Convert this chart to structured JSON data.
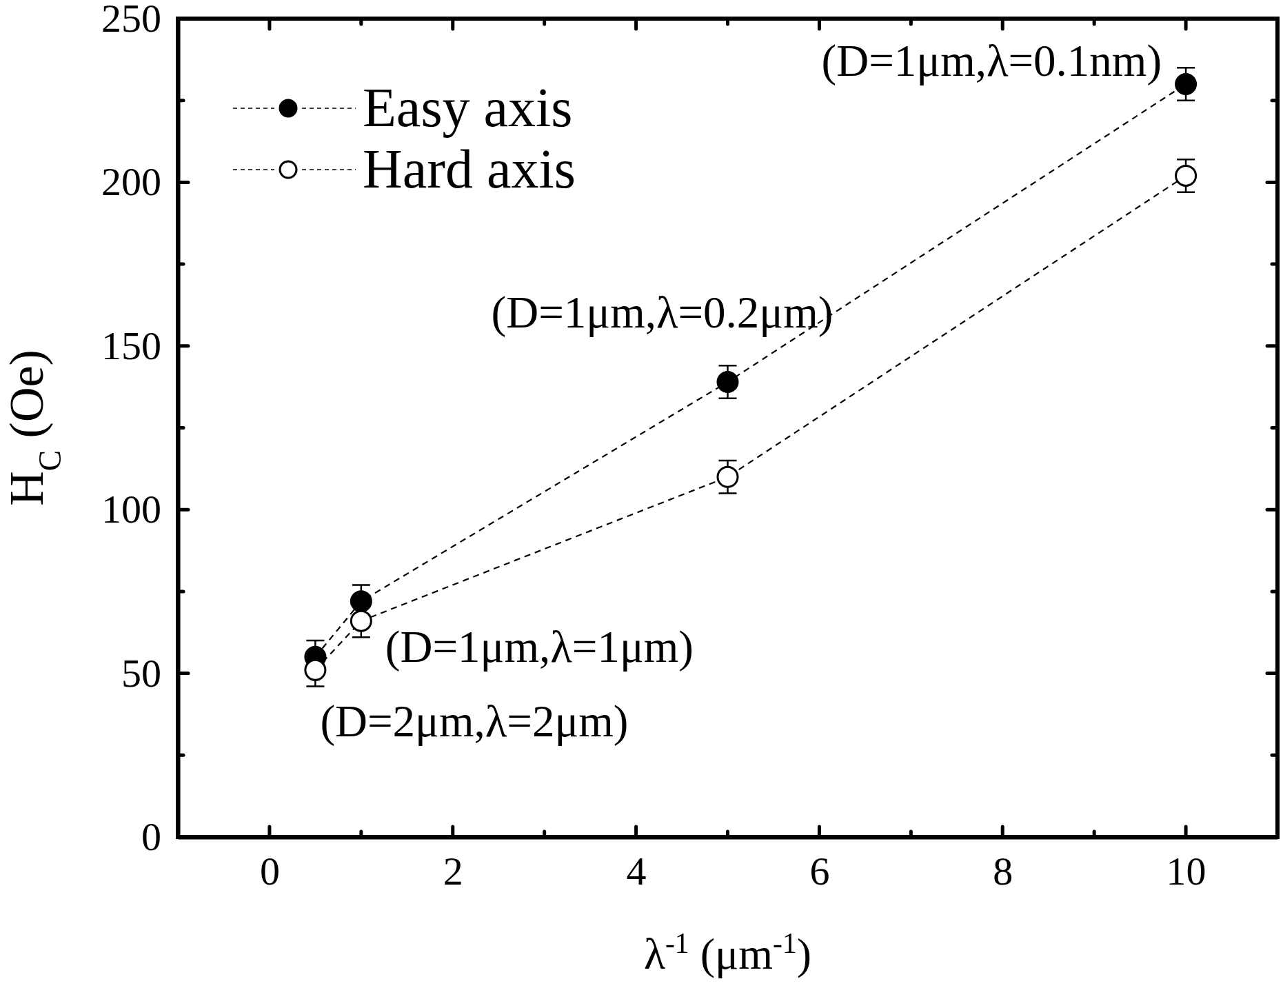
{
  "chart_data": {
    "type": "line",
    "xlabel": "λ$^{-1}$ (μm$^{-1}$)",
    "ylabel": "H$_{C}$ (Oe)",
    "xlim": [
      -1,
      11
    ],
    "xticks": [
      0,
      {
        "value": 1,
        "label": null
      },
      2,
      {
        "value": 3,
        "label": null
      },
      4,
      {
        "value": 5,
        "label": null
      },
      6,
      {
        "value": 7,
        "label": null
      },
      8,
      {
        "value": 9,
        "label": null
      },
      10
    ],
    "ylim": [
      0,
      250
    ],
    "yticks": [
      0,
      {
        "value": 25,
        "label": null
      },
      50,
      {
        "value": 75,
        "label": null
      },
      100,
      {
        "value": 125,
        "label": null
      },
      150,
      {
        "value": 175,
        "label": null
      },
      200,
      {
        "value": 225,
        "label": null
      },
      250
    ],
    "x": [
      0.5,
      1,
      5,
      10
    ],
    "series": [
      {
        "name": "Easy axis",
        "color": "#000000",
        "values": [
          55,
          72,
          139,
          230
        ],
        "errors": [
          5,
          5,
          5,
          5
        ]
      },
      {
        "name": "Hard axis",
        "color": "#000000",
        "colors": [
          "#ffffff",
          "#ffffff",
          "#ffffff",
          "#ffffff"
        ],
        "values": [
          51,
          66,
          110,
          202
        ],
        "errors": [
          5,
          5,
          5,
          5
        ]
      }
    ],
    "marker": "circle",
    "line_style": "dashed",
    "legend": "top left",
    "annotations": [
      {
        "text": "(D=1μm,λ=0.1nm)",
        "x": 10,
        "y": 230
      },
      {
        "text": "(D=1μm,λ=0.2μm)",
        "x": 5,
        "y": 139
      },
      {
        "text": "(D=1μm,λ=1μm)",
        "x": 1,
        "y": 66
      },
      {
        "text": "(D=2μm,λ=2μm)",
        "x": 0.5,
        "y": 51
      }
    ]
  }
}
